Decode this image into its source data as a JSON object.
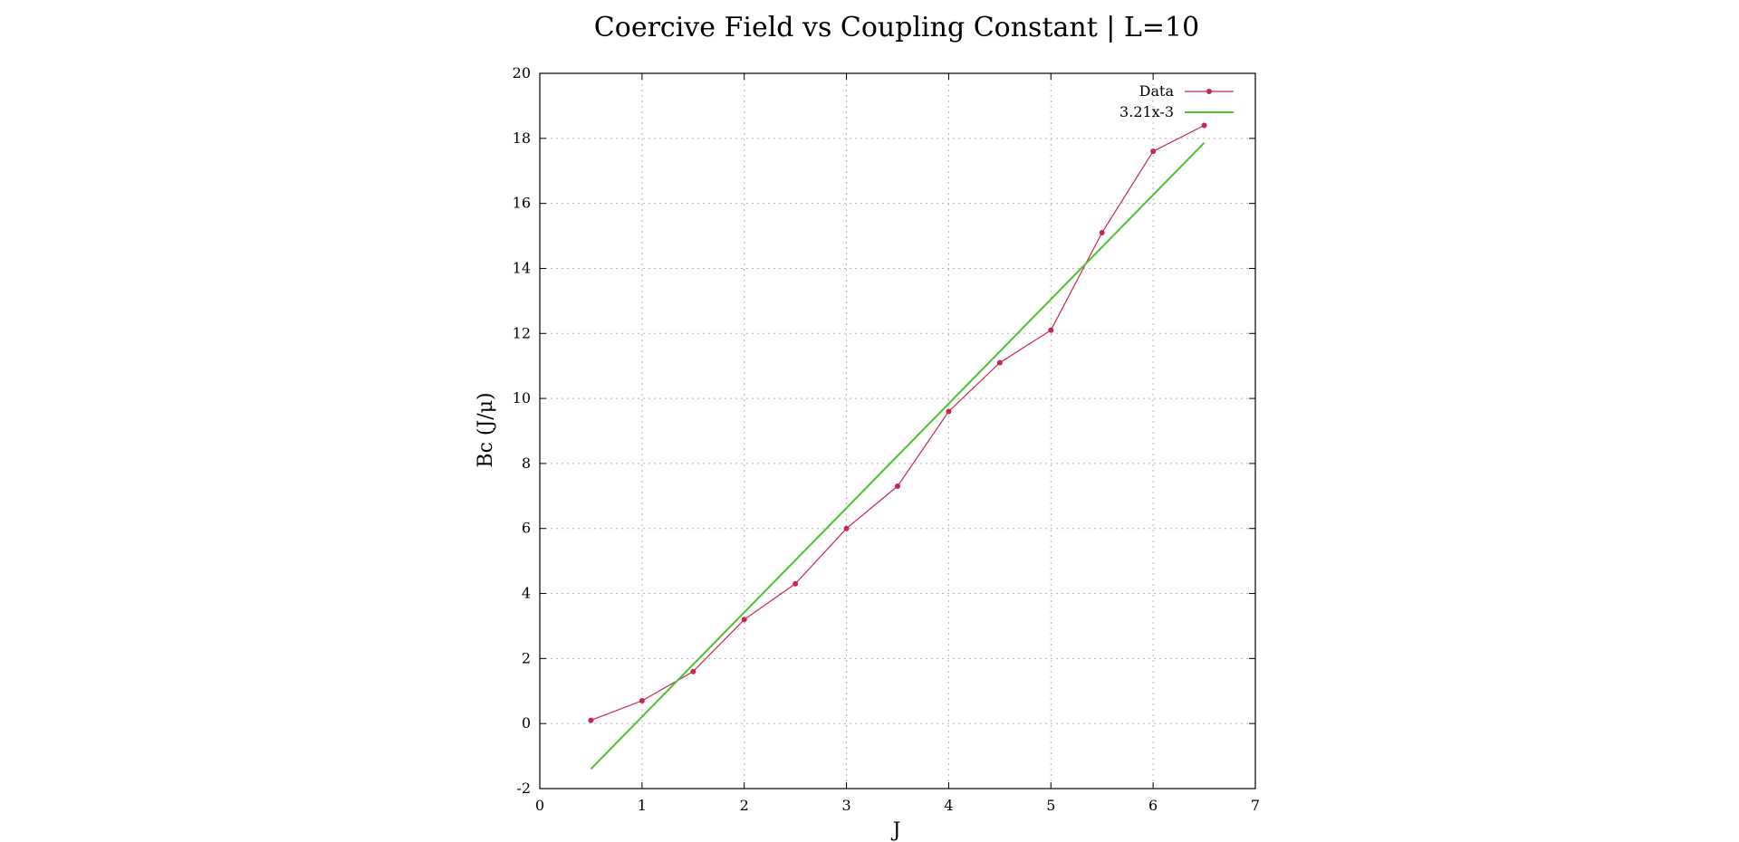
{
  "chart_data": {
    "type": "line",
    "title": "Coercive Field vs Coupling Constant | L=10",
    "xlabel": "J",
    "ylabel": "Bc (J/μ)",
    "xlim": [
      0,
      7
    ],
    "ylim": [
      -2,
      20
    ],
    "xticks": [
      "0",
      "1",
      "2",
      "3",
      "4",
      "5",
      "6",
      "7"
    ],
    "yticks": [
      "-2",
      "0",
      "2",
      "4",
      "6",
      "8",
      "10",
      "12",
      "14",
      "16",
      "18",
      "20"
    ],
    "grid": true,
    "legend_position": "top-right",
    "series": [
      {
        "name": "Data",
        "kind": "line-points",
        "color": "#c8264e",
        "x": [
          0.5,
          1.0,
          1.5,
          2.0,
          2.5,
          3.0,
          3.5,
          4.0,
          4.5,
          5.0,
          5.5,
          6.0,
          6.5
        ],
        "y": [
          0.1,
          0.7,
          1.6,
          3.2,
          4.3,
          6.0,
          7.3,
          9.6,
          11.1,
          12.1,
          15.1,
          17.6,
          18.4
        ]
      },
      {
        "name": "3.21x-3",
        "kind": "fit-line",
        "color": "#4cc230",
        "slope": 3.21,
        "intercept": -3,
        "x_range": [
          0.5,
          6.5
        ]
      }
    ]
  }
}
